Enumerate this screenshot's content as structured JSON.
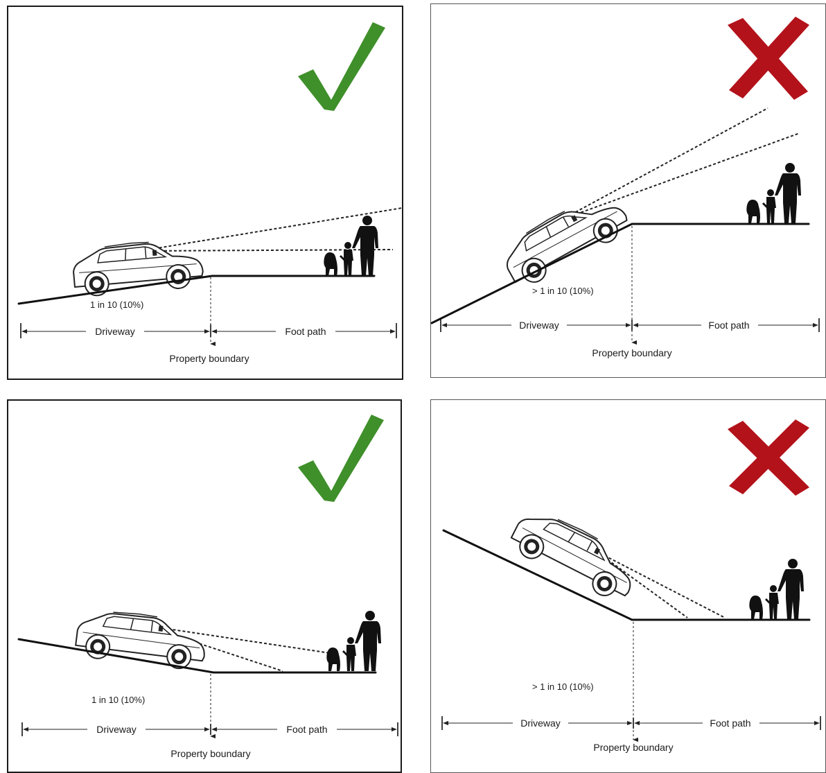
{
  "colors": {
    "check": "#3f8f2a",
    "cross": "#b3121a",
    "ink": "#111111"
  },
  "panels": [
    {
      "status": "correct",
      "icon": "check-mark-icon",
      "gradient_label": "1 in 10 (10%)",
      "driveway_label": "Driveway",
      "footpath_label": "Foot path",
      "boundary_label": "Property boundary"
    },
    {
      "status": "incorrect",
      "icon": "cross-mark-icon",
      "gradient_label": "> 1 in 10 (10%)",
      "driveway_label": "Driveway",
      "footpath_label": "Foot path",
      "boundary_label": "Property boundary"
    },
    {
      "status": "correct",
      "icon": "check-mark-icon",
      "gradient_label": "1 in 10 (10%)",
      "driveway_label": "Driveway",
      "footpath_label": "Foot path",
      "boundary_label": "Property boundary"
    },
    {
      "status": "incorrect",
      "icon": "cross-mark-icon",
      "gradient_label": "> 1 in 10 (10%)",
      "driveway_label": "Driveway",
      "footpath_label": "Foot path",
      "boundary_label": "Property boundary"
    }
  ]
}
